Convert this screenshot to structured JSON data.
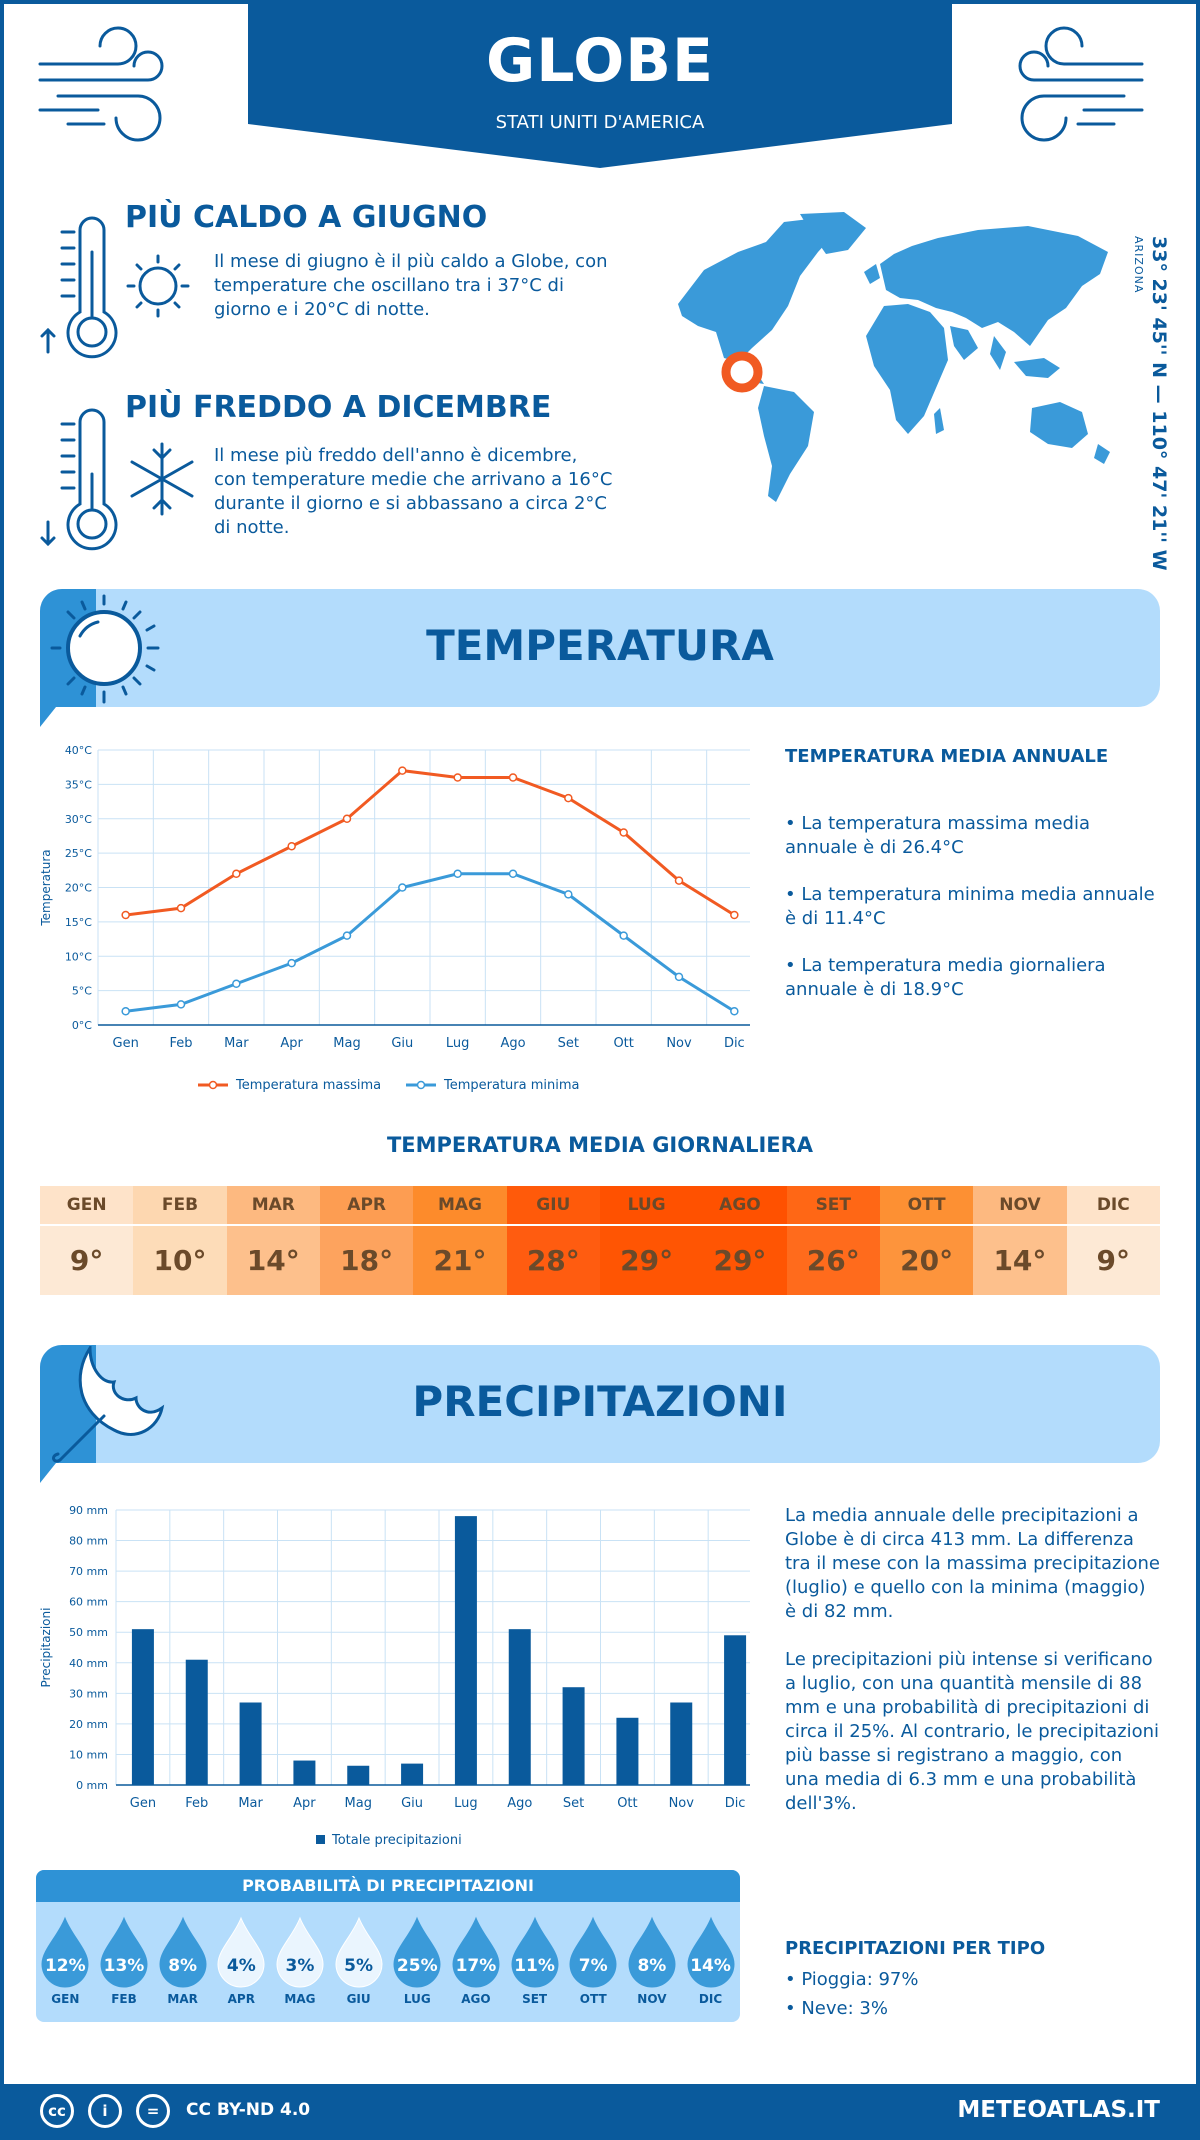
{
  "header": {
    "city": "GLOBE",
    "country": "STATI UNITI D'AMERICA"
  },
  "coords": {
    "text": "33° 23' 45'' N — 110° 47' 21'' W",
    "region": "ARIZONA"
  },
  "hottest": {
    "title": "PIÙ CALDO A GIUGNO",
    "text": "Il mese di giugno è il più caldo a Globe, con temperature che oscillano tra i 37°C di giorno e i 20°C di notte."
  },
  "coldest": {
    "title": "PIÙ FREDDO A DICEMBRE",
    "text": "Il mese più freddo dell'anno è dicembre, con temperature medie che arrivano a 16°C durante il giorno e si abbassano a circa 2°C di notte."
  },
  "temperature": {
    "section_title": "TEMPERATURA",
    "annual_title": "TEMPERATURA MEDIA ANNUALE",
    "bullets": [
      "• La temperatura massima media annuale è di 26.4°C",
      "• La temperatura minima media annuale è di 11.4°C",
      "• La temperatura media giornaliera annuale è di 18.9°C"
    ],
    "chart_data": {
      "type": "line",
      "categories": [
        "Gen",
        "Feb",
        "Mar",
        "Apr",
        "Mag",
        "Giu",
        "Lug",
        "Ago",
        "Set",
        "Ott",
        "Nov",
        "Dic"
      ],
      "series": [
        {
          "name": "Temperatura massima",
          "values": [
            16,
            17,
            22,
            26,
            30,
            37,
            36,
            36,
            33,
            28,
            21,
            16
          ],
          "color": "#f15a22"
        },
        {
          "name": "Temperatura minima",
          "values": [
            2,
            3,
            6,
            9,
            13,
            20,
            22,
            22,
            19,
            13,
            7,
            2
          ],
          "color": "#3a9ad9"
        }
      ],
      "ylabel": "Temperatura",
      "yticks": [
        "0°C",
        "5°C",
        "10°C",
        "15°C",
        "20°C",
        "25°C",
        "30°C",
        "35°C",
        "40°C"
      ],
      "ylim": [
        0,
        40
      ],
      "grid": true,
      "legend": "bottom"
    }
  },
  "daily": {
    "title": "TEMPERATURA MEDIA GIORNALIERA",
    "months": [
      {
        "m": "GEN",
        "v": "9°",
        "bg": "#fee3c9",
        "bgv": "#fde9d5"
      },
      {
        "m": "FEB",
        "v": "10°",
        "bg": "#fdd7b0",
        "bgv": "#fddcb8"
      },
      {
        "m": "MAR",
        "v": "14°",
        "bg": "#fdb980",
        "bgv": "#fdc08c"
      },
      {
        "m": "APR",
        "v": "18°",
        "bg": "#fd9d52",
        "bgv": "#fda35e"
      },
      {
        "m": "MAG",
        "v": "21°",
        "bg": "#fd8b2b",
        "bgv": "#fd8f33"
      },
      {
        "m": "GIU",
        "v": "28°",
        "bg": "#ff5a0a",
        "bgv": "#ff5c10"
      },
      {
        "m": "LUG",
        "v": "29°",
        "bg": "#ff5100",
        "bgv": "#ff5503"
      },
      {
        "m": "AGO",
        "v": "29°",
        "bg": "#ff5100",
        "bgv": "#ff5503"
      },
      {
        "m": "SET",
        "v": "26°",
        "bg": "#ff6715",
        "bgv": "#ff6b1c"
      },
      {
        "m": "OTT",
        "v": "20°",
        "bg": "#fd9033",
        "bgv": "#fd943c"
      },
      {
        "m": "NOV",
        "v": "14°",
        "bg": "#fdb980",
        "bgv": "#fdc08c"
      },
      {
        "m": "DIC",
        "v": "9°",
        "bg": "#fee3c9",
        "bgv": "#fde9d5"
      }
    ]
  },
  "precipitation": {
    "section_title": "PRECIPITAZIONI",
    "p1": "La media annuale delle precipitazioni a Globe è di circa 413 mm. La differenza tra il mese con la massima precipitazione (luglio) e quello con la minima (maggio) è di 82 mm.",
    "p2": "Le precipitazioni più intense si verificano a luglio, con una quantità mensile di 88 mm e una probabilità di precipitazioni di circa il 25%. Al contrario, le precipitazioni più basse si registrano a maggio, con una media di 6.3 mm e una probabilità dell'3%.",
    "chart_data": {
      "type": "bar",
      "categories": [
        "Gen",
        "Feb",
        "Mar",
        "Apr",
        "Mag",
        "Giu",
        "Lug",
        "Ago",
        "Set",
        "Ott",
        "Nov",
        "Dic"
      ],
      "series": [
        {
          "name": "Totale precipitazioni",
          "values": [
            51,
            41,
            27,
            8,
            6.3,
            7,
            88,
            51,
            32,
            22,
            27,
            49
          ],
          "color": "#0a5a9c"
        }
      ],
      "ylabel": "Precipitazioni",
      "yticks": [
        "0 mm",
        "10 mm",
        "20 mm",
        "30 mm",
        "40 mm",
        "50 mm",
        "60 mm",
        "70 mm",
        "80 mm",
        "90 mm"
      ],
      "ylim": [
        0,
        90
      ],
      "grid": true,
      "legend": "bottom"
    },
    "prob_title": "PROBABILITÀ DI PRECIPITAZIONI",
    "prob": [
      {
        "m": "GEN",
        "v": "12%",
        "c": "#3a9ad9"
      },
      {
        "m": "FEB",
        "v": "13%",
        "c": "#3a9ad9"
      },
      {
        "m": "MAR",
        "v": "8%",
        "c": "#3a9ad9"
      },
      {
        "m": "APR",
        "v": "4%",
        "c": "#eaf5fe"
      },
      {
        "m": "MAG",
        "v": "3%",
        "c": "#eaf5fe"
      },
      {
        "m": "GIU",
        "v": "5%",
        "c": "#eaf5fe"
      },
      {
        "m": "LUG",
        "v": "25%",
        "c": "#3a9ad9"
      },
      {
        "m": "AGO",
        "v": "17%",
        "c": "#3a9ad9"
      },
      {
        "m": "SET",
        "v": "11%",
        "c": "#3a9ad9"
      },
      {
        "m": "OTT",
        "v": "7%",
        "c": "#3a9ad9"
      },
      {
        "m": "NOV",
        "v": "8%",
        "c": "#3a9ad9"
      },
      {
        "m": "DIC",
        "v": "14%",
        "c": "#3a9ad9"
      }
    ],
    "type_title": "PRECIPITAZIONI PER TIPO",
    "types": [
      "• Pioggia: 97%",
      "• Neve: 3%"
    ]
  },
  "footer": {
    "license": "CC BY-ND 4.0",
    "site": "METEOATLAS.IT",
    "icons": [
      "cc-icon",
      "by-icon",
      "nd-icon"
    ],
    "icon_labels": [
      "cc",
      "i",
      "="
    ]
  }
}
